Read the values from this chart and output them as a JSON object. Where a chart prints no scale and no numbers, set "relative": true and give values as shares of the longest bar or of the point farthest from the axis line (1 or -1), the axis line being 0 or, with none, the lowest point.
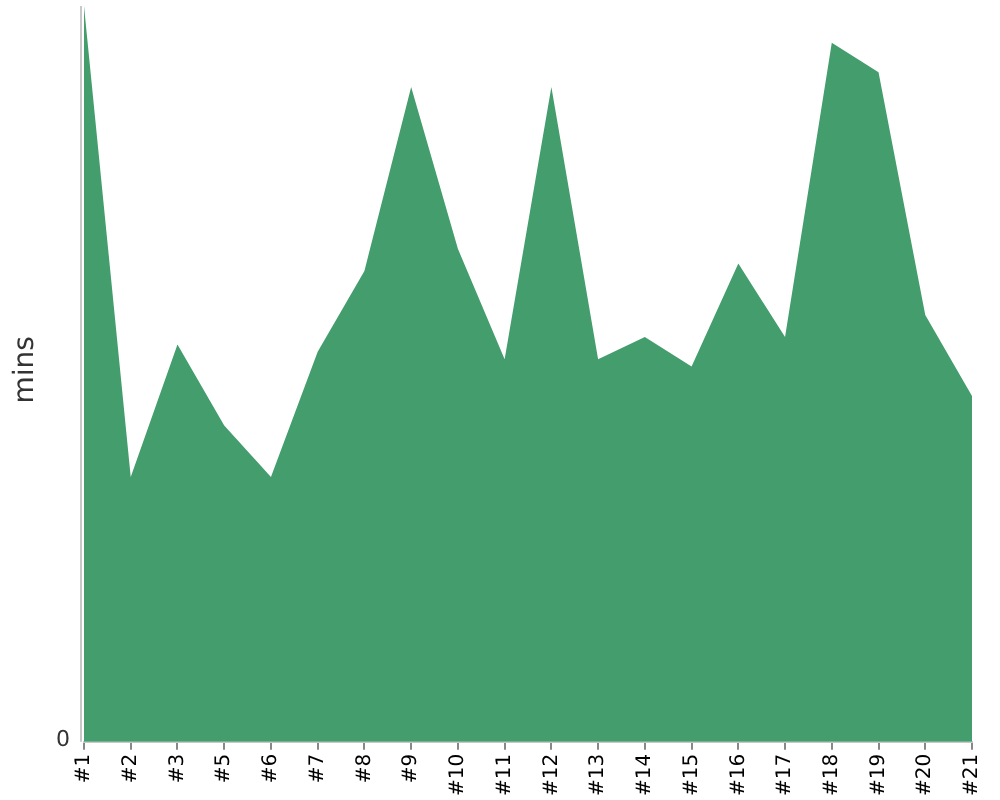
{
  "chart_data": {
    "type": "area",
    "ylabel": "mins",
    "relative": true,
    "color": "#449d6c",
    "categories": [
      "#1",
      "#2",
      "#3",
      "#5",
      "#6",
      "#7",
      "#8",
      "#9",
      "#10",
      "#11",
      "#12",
      "#13",
      "#14",
      "#15",
      "#16",
      "#17",
      "#18",
      "#19",
      "#20",
      "#21"
    ],
    "values": [
      1,
      0.36,
      0.54,
      0.43,
      0.36,
      0.53,
      0.64,
      0.89,
      0.67,
      0.52,
      0.89,
      0.52,
      0.55,
      0.51,
      0.65,
      0.55,
      0.95,
      0.91,
      0.58,
      0.47
    ],
    "annotations": [
      "0"
    ]
  }
}
